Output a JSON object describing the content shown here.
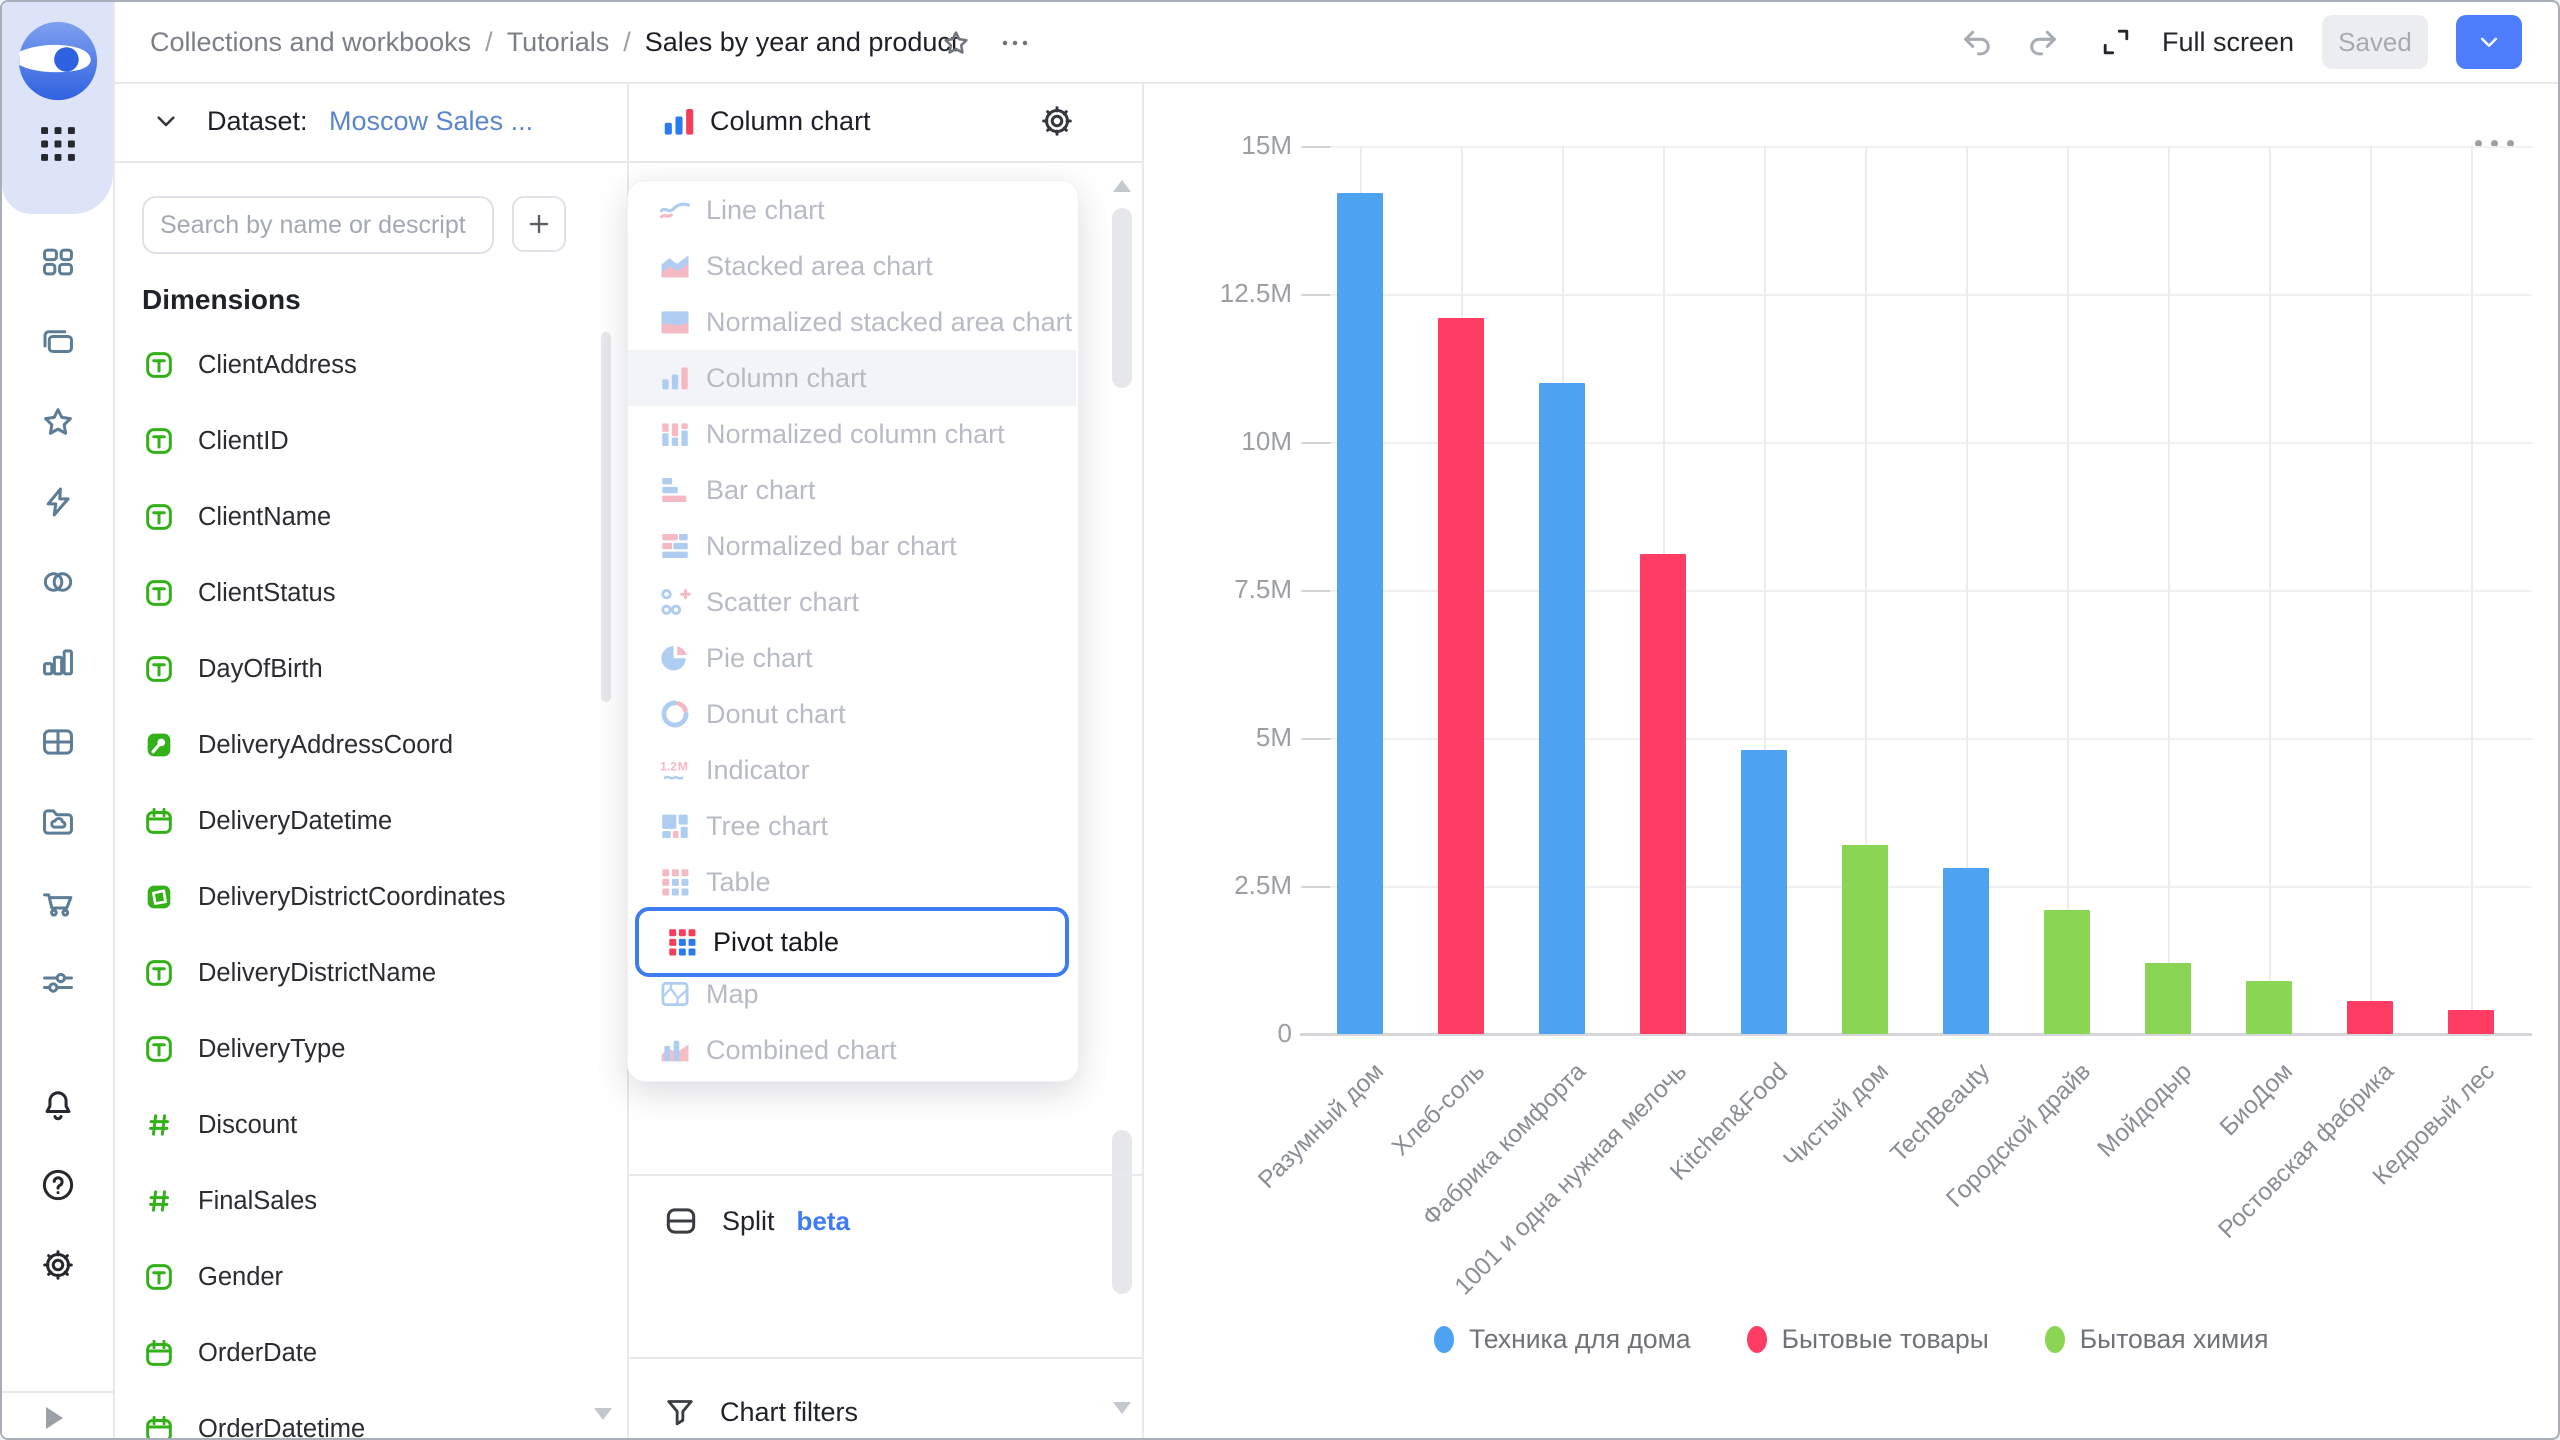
{
  "topbar": {
    "breadcrumb": [
      "Collections and workbooks",
      "Tutorials",
      "Sales by year and product"
    ],
    "breadcrumb_separator": "/",
    "full_screen_label": "Full screen",
    "saved_label": "Saved"
  },
  "sidebar": {
    "top_icons": [
      "apps-grid-icon"
    ],
    "nav_icons": [
      "tiles-icon",
      "collections-stack-icon",
      "star-icon",
      "lightning-icon",
      "linked-circles-icon",
      "bar-chart-icon",
      "table-grid-icon",
      "folder-cloud-icon",
      "cart-icon",
      "sliders-icon"
    ],
    "bottom_icons": [
      "bell-icon",
      "help-icon",
      "gear-icon"
    ]
  },
  "dataset_panel": {
    "header_label": "Dataset:",
    "dataset_name": "Moscow Sales ...",
    "search_placeholder": "Search by name or descript",
    "add_button_label": "+",
    "section_title": "Dimensions",
    "fields": [
      {
        "name": "ClientAddress",
        "type": "text"
      },
      {
        "name": "ClientID",
        "type": "text"
      },
      {
        "name": "ClientName",
        "type": "text"
      },
      {
        "name": "ClientStatus",
        "type": "text"
      },
      {
        "name": "DayOfBirth",
        "type": "text"
      },
      {
        "name": "DeliveryAddressCoord",
        "type": "geopoint"
      },
      {
        "name": "DeliveryDatetime",
        "type": "date"
      },
      {
        "name": "DeliveryDistrictCoordinates",
        "type": "geopolygon"
      },
      {
        "name": "DeliveryDistrictName",
        "type": "text"
      },
      {
        "name": "DeliveryType",
        "type": "text"
      },
      {
        "name": "Discount",
        "type": "number"
      },
      {
        "name": "FinalSales",
        "type": "number"
      },
      {
        "name": "Gender",
        "type": "text"
      },
      {
        "name": "OrderDate",
        "type": "date"
      },
      {
        "name": "OrderDatetime",
        "type": "date"
      }
    ]
  },
  "viz_panel": {
    "header_label": "Column chart",
    "menu_items": [
      {
        "label": "Line chart",
        "icon": "line-chart-icon",
        "state": "disabled"
      },
      {
        "label": "Stacked area chart",
        "icon": "stacked-area-chart-icon",
        "state": "disabled"
      },
      {
        "label": "Normalized stacked area chart",
        "icon": "normalized-stacked-area-chart-icon",
        "state": "disabled"
      },
      {
        "label": "Column chart",
        "icon": "column-chart-icon",
        "state": "current"
      },
      {
        "label": "Normalized column chart",
        "icon": "normalized-column-chart-icon",
        "state": "disabled"
      },
      {
        "label": "Bar chart",
        "icon": "bar-chart-type-icon",
        "state": "disabled"
      },
      {
        "label": "Normalized bar chart",
        "icon": "normalized-bar-chart-icon",
        "state": "disabled"
      },
      {
        "label": "Scatter chart",
        "icon": "scatter-chart-icon",
        "state": "disabled"
      },
      {
        "label": "Pie chart",
        "icon": "pie-chart-icon",
        "state": "disabled"
      },
      {
        "label": "Donut chart",
        "icon": "donut-chart-icon",
        "state": "disabled"
      },
      {
        "label": "Indicator",
        "icon": "indicator-icon",
        "state": "disabled"
      },
      {
        "label": "Tree chart",
        "icon": "tree-chart-icon",
        "state": "disabled"
      },
      {
        "label": "Table",
        "icon": "table-icon",
        "state": "disabled"
      },
      {
        "label": "Pivot table",
        "icon": "pivot-table-icon",
        "state": "highlighted"
      },
      {
        "label": "Map",
        "icon": "map-icon",
        "state": "disabled"
      },
      {
        "label": "Combined chart",
        "icon": "combined-chart-icon",
        "state": "disabled"
      }
    ],
    "split_label": "Split",
    "split_badge": "beta",
    "chart_filters_label": "Chart filters"
  },
  "chart_data": {
    "type": "bar",
    "title": "",
    "xlabel": "",
    "ylabel": "",
    "ylim": [
      0,
      15000000
    ],
    "grid": true,
    "legend_position": "bottom",
    "yticks": [
      {
        "label": "15M",
        "value": 15
      },
      {
        "label": "12.5M",
        "value": 12.5
      },
      {
        "label": "10M",
        "value": 10
      },
      {
        "label": "7.5M",
        "value": 7.5
      },
      {
        "label": "5M",
        "value": 5
      },
      {
        "label": "2.5M",
        "value": 2.5
      },
      {
        "label": "0",
        "value": 0
      }
    ],
    "categories": [
      "Разумный дом",
      "Хлеб-соль",
      "Фабрика комфорта",
      "1001 и одна нужная мелочь",
      "Kitchen&Food",
      "Чистый дом",
      "TechBeauty",
      "Городской драйв",
      "Мойдодыр",
      "БиоДом",
      "Ростовская фабрика",
      "Кедровый лес"
    ],
    "values_millions": [
      14.2,
      12.1,
      11.0,
      8.1,
      4.8,
      3.2,
      2.8,
      2.1,
      1.2,
      0.9,
      0.55,
      0.4
    ],
    "groups": [
      "Техника для дома",
      "Бытовые товары",
      "Техника для дома",
      "Бытовые товары",
      "Техника для дома",
      "Бытовая химия",
      "Техника для дома",
      "Бытовая химия",
      "Бытовая химия",
      "Бытовая химия",
      "Бытовые товары",
      "Бытовые товары"
    ],
    "legend": [
      {
        "label": "Техника для дома",
        "color": "#4DA2F1"
      },
      {
        "label": "Бытовые товары",
        "color": "#FF3D64"
      },
      {
        "label": "Бытовая химия",
        "color": "#8AD554"
      }
    ]
  }
}
